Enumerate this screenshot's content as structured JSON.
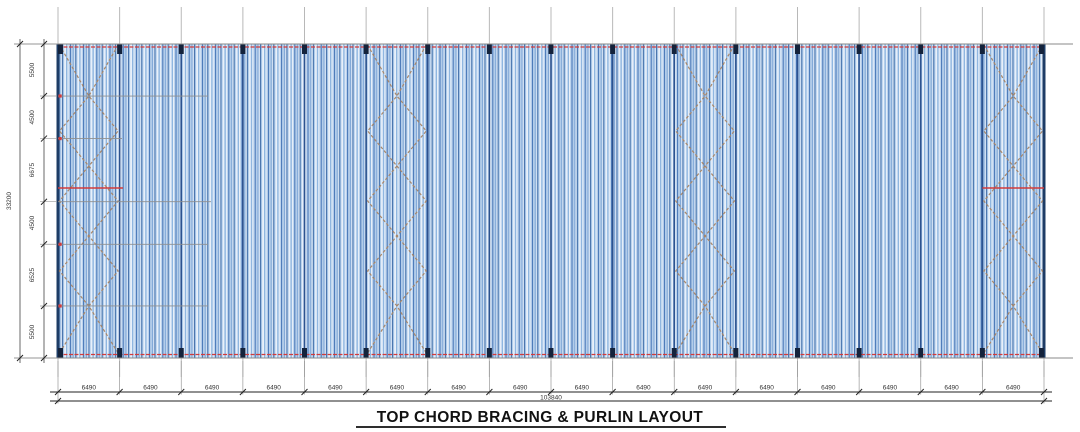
{
  "title": "TOP CHORD BRACING & PURLIN LAYOUT",
  "dimensions": {
    "left": {
      "segments": [
        "5500",
        "4500",
        "6675",
        "4500",
        "6525",
        "5500"
      ],
      "total": "33200"
    },
    "bottom": {
      "segments": [
        "6490",
        "6490",
        "6490",
        "6490",
        "6490",
        "6490",
        "6490",
        "6490",
        "6490",
        "6490",
        "6490",
        "6490",
        "6490",
        "6490",
        "6490",
        "6490"
      ],
      "total": "103840"
    }
  },
  "structure": {
    "bay_count": 16,
    "grid_line_count": 17,
    "braced_bay_indices": [
      0,
      5,
      10,
      15
    ]
  },
  "colors": {
    "red_accent": "#d23b3b",
    "navy_edge": "#1d3c66",
    "rafter_blue": "#2c528f",
    "bracing_tan": "#a8876a",
    "grid_gray": "#b8b8b8",
    "boundary_gray": "#8a8a8a",
    "dim_gray": "#444444",
    "marker_navy": "#14233c",
    "field_base": "#bdd4ec",
    "purlin_stripes": [
      [
        0.0,
        1.5,
        "#8fb6e0"
      ],
      [
        1.5,
        2.4,
        "#f4f8fd"
      ],
      [
        2.4,
        3.9,
        "#bdd4ee"
      ],
      [
        3.9,
        4.9,
        "#4273b5"
      ],
      [
        4.9,
        6.8,
        "#b3cdea"
      ],
      [
        6.8,
        7.7,
        "#6f9cd1"
      ],
      [
        7.7,
        9.3,
        "#cfdff2"
      ],
      [
        9.3,
        10.2,
        "#2f5f9f"
      ],
      [
        10.2,
        11.4,
        "#a9c7e7"
      ],
      [
        11.4,
        13.2,
        "#e8f0fa"
      ]
    ]
  }
}
